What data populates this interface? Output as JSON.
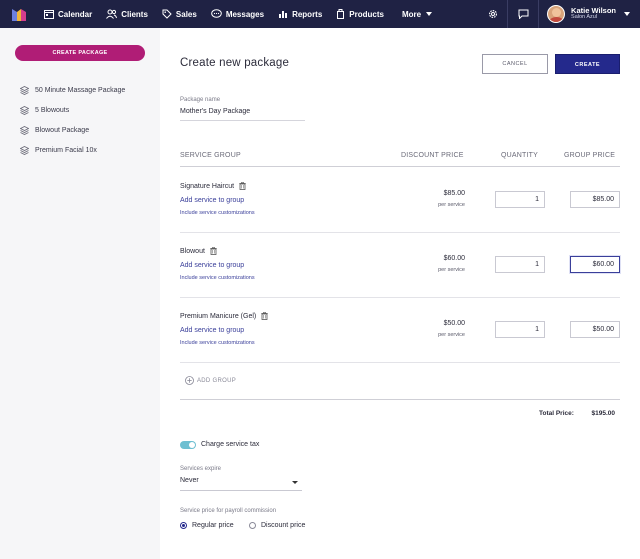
{
  "nav": {
    "items": [
      {
        "label": "Calendar",
        "icon": "calendar-icon"
      },
      {
        "label": "Clients",
        "icon": "clients-icon"
      },
      {
        "label": "Sales",
        "icon": "sales-icon"
      },
      {
        "label": "Messages",
        "icon": "messages-icon"
      },
      {
        "label": "Reports",
        "icon": "reports-icon"
      },
      {
        "label": "Products",
        "icon": "products-icon"
      }
    ],
    "more": "More",
    "user_name": "Katie Wilson",
    "user_location": "Salon Azul",
    "colors": {
      "bar": "#1f2244",
      "accent": "#b01d76",
      "primary": "#24298c"
    }
  },
  "sidebar": {
    "create_button": "CREATE PACKAGE",
    "packages": [
      "50 Minute Massage Package",
      "5 Blowouts",
      "Blowout Package",
      "Premium Facial 10x"
    ]
  },
  "main": {
    "title": "Create new package",
    "cancel": "CANCEL",
    "create": "CREATE",
    "package_name_label": "Package name",
    "package_name_value": "Mother's Day Package",
    "headers": {
      "service_group": "SERVICE GROUP",
      "discount_price": "DISCOUNT PRICE",
      "quantity": "QUANTITY",
      "group_price": "GROUP PRICE"
    },
    "groups": [
      {
        "name": "Signature Haircut",
        "add_service": "Add service to group",
        "include": "Include service customizations",
        "price": "$85.00",
        "per": "per service",
        "quantity": "1",
        "group_price": "$85.00"
      },
      {
        "name": "Blowout",
        "add_service": "Add service to group",
        "include": "Include service customizations",
        "price": "$60.00",
        "per": "per service",
        "quantity": "1",
        "group_price": "$60.00"
      },
      {
        "name": "Premium Manicure (Gel)",
        "add_service": "Add service to group",
        "include": "Include service customizations",
        "price": "$50.00",
        "per": "per service",
        "quantity": "1",
        "group_price": "$50.00"
      }
    ],
    "add_group": "ADD GROUP",
    "total_label": "Total Price:",
    "total_value": "$195.00",
    "charge_tax_label": "Charge service tax",
    "charge_tax_on": true,
    "expire_label": "Services expire",
    "expire_value": "Never",
    "payroll_label": "Service price for payroll commission",
    "radio_regular": "Regular price",
    "radio_discount": "Discount price",
    "radio_selected": "Regular price"
  }
}
